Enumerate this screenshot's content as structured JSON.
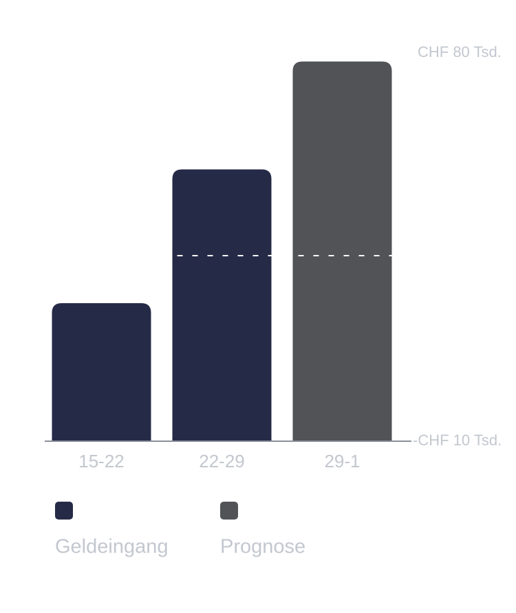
{
  "chart_data": {
    "type": "bar",
    "categories": [
      "15-22",
      "22-29",
      "29-1"
    ],
    "series": [
      {
        "name": "Geldeingang",
        "color": "#252a47",
        "values": [
          22,
          53,
          null
        ]
      },
      {
        "name": "Prognose",
        "color": "#525357",
        "values": [
          null,
          null,
          78
        ]
      }
    ],
    "reference_value": 33,
    "ylim": [
      -10,
      80
    ],
    "yticks": [
      {
        "value": 80,
        "label": "CHF 80 Tsd."
      },
      {
        "value": -10,
        "label": "-CHF 10 Tsd."
      }
    ]
  }
}
